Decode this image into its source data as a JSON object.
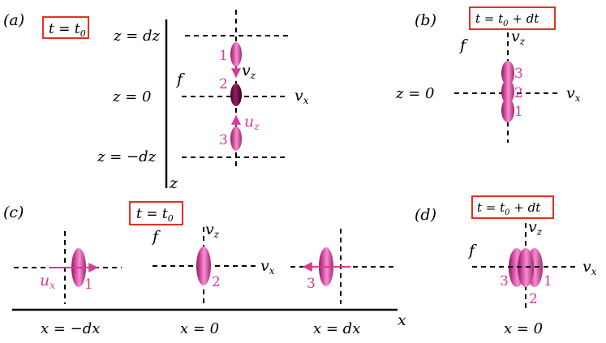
{
  "colors": {
    "ink": "#000000",
    "accent": "#d63c96",
    "box": "#e53020",
    "ellipse_light": "#f07cc8",
    "ellipse_mid": "#d63c96",
    "ellipse_dark": "#7a1050"
  },
  "panel_a": {
    "tag": "(a)",
    "time": "t = t",
    "time_sub": "0",
    "z_pos": "z = dz",
    "z_zero": "z = 0",
    "z_neg": "z = −dz",
    "axis_z": "z",
    "axis_f": "f",
    "axis_vx": "v",
    "axis_vx_sub": "x",
    "axis_vz": "v",
    "axis_vz_sub": "z",
    "axis_uz": "u",
    "axis_uz_sub": "z",
    "label_1": "1",
    "label_2": "2",
    "label_3": "3"
  },
  "panel_b": {
    "tag": "(b)",
    "time": "t = t",
    "time_sub": "0",
    "time_tail": " + dt",
    "z_zero": "z = 0",
    "axis_f": "f",
    "axis_vx": "v",
    "axis_vx_sub": "x",
    "axis_vz": "v",
    "axis_vz_sub": "z",
    "label_1": "1",
    "label_2": "2",
    "label_3": "3"
  },
  "panel_c": {
    "tag": "(c)",
    "time": "t = t",
    "time_sub": "0",
    "axis_f": "f",
    "axis_vx": "v",
    "axis_vx_sub": "x",
    "axis_vz": "v",
    "axis_vz_sub": "z",
    "axis_ux": "u",
    "axis_ux_sub": "x",
    "axis_x": "x",
    "x_neg": "x = −dx",
    "x_zero": "x = 0",
    "x_pos": "x = dx",
    "label_1": "1",
    "label_2": "2",
    "label_3": "3"
  },
  "panel_d": {
    "tag": "(d)",
    "time": "t = t",
    "time_sub": "0",
    "time_tail": " + dt",
    "axis_f": "f",
    "axis_vx": "v",
    "axis_vx_sub": "x",
    "axis_vz": "v",
    "axis_vz_sub": "z",
    "x_zero": "x = 0",
    "label_1": "1",
    "label_2": "2",
    "label_3": "3"
  }
}
